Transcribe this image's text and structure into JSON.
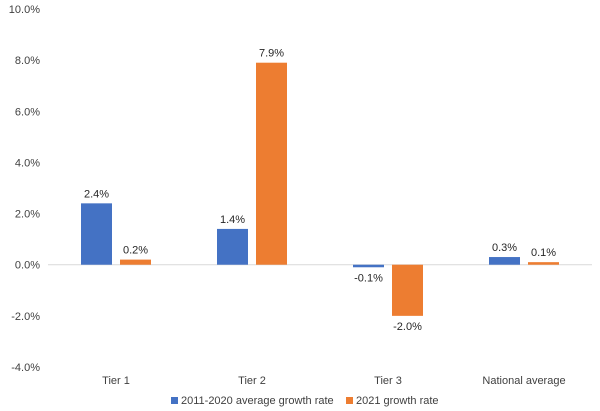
{
  "chart_data": {
    "type": "bar",
    "title": "",
    "xlabel": "",
    "ylabel": "",
    "categories": [
      "Tier 1",
      "Tier 2",
      "Tier 3",
      "National average"
    ],
    "series": [
      {
        "name": "2011-2020 average growth rate",
        "color": "#4472C4",
        "values": [
          2.4,
          1.4,
          -0.1,
          0.3
        ],
        "labels": [
          "2.4%",
          "1.4%",
          "-0.1%",
          "0.3%"
        ]
      },
      {
        "name": "2021 growth rate",
        "color": "#ED7D31",
        "values": [
          0.2,
          7.9,
          -2.0,
          0.1
        ],
        "labels": [
          "0.2%",
          "7.9%",
          "-2.0%",
          "0.1%"
        ]
      }
    ],
    "ylim": [
      -4.0,
      10.0
    ],
    "yticks": [
      10.0,
      8.0,
      6.0,
      4.0,
      2.0,
      0.0,
      -2.0,
      -4.0
    ],
    "ytick_labels": [
      "10.0%",
      "8.0%",
      "6.0%",
      "4.0%",
      "2.0%",
      "0.0%",
      "-2.0%",
      "-4.0%"
    ],
    "grid": false,
    "legend_position": "bottom-center"
  }
}
